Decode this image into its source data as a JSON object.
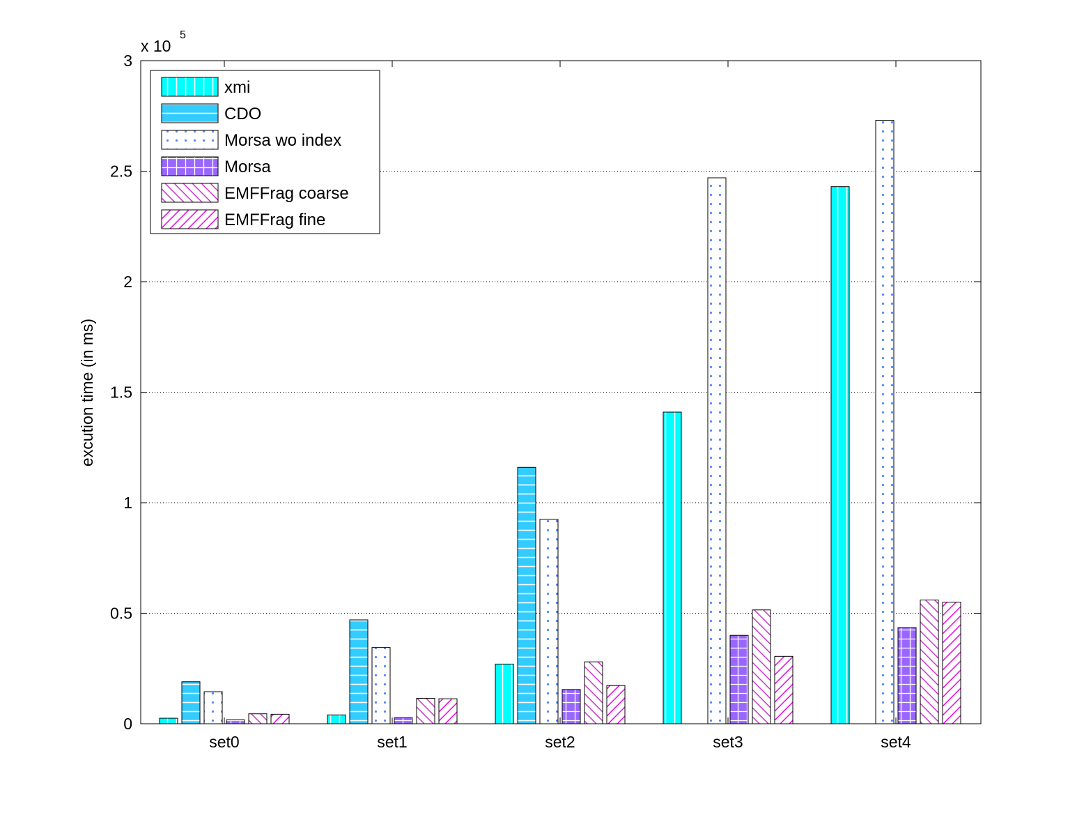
{
  "chart_data": {
    "type": "bar",
    "categories": [
      "set0",
      "set1",
      "set2",
      "set3",
      "set4"
    ],
    "ylabel": "excution time (in ms)",
    "y_multiplier_label": {
      "base": "x 10",
      "exponent": "5"
    },
    "ylim": [
      0,
      300000
    ],
    "yticks": [
      0,
      50000,
      100000,
      150000,
      200000,
      250000,
      300000
    ],
    "ytick_labels": [
      "0",
      "0.5",
      "1",
      "1.5",
      "2",
      "2.5",
      "3"
    ],
    "grid": "horizontal dotted",
    "legend_position": "top-left",
    "series": [
      {
        "name": "xmi",
        "values": [
          2500,
          4000,
          27000,
          141000,
          243000
        ],
        "fill": "#00ffff",
        "pattern": "vertical-lines"
      },
      {
        "name": "CDO",
        "values": [
          19000,
          47000,
          116000,
          0,
          0
        ],
        "fill": "#33ccff",
        "pattern": "horizontal-lines"
      },
      {
        "name": "Morsa wo index",
        "values": [
          14500,
          34500,
          92500,
          247000,
          273000
        ],
        "fill": "#ffffff",
        "pattern": "dots"
      },
      {
        "name": "Morsa",
        "values": [
          1800,
          2700,
          15500,
          40000,
          43500
        ],
        "fill": "#9966ff",
        "pattern": "grid"
      },
      {
        "name": "EMFFrag coarse",
        "values": [
          4500,
          11500,
          28000,
          51500,
          56000
        ],
        "fill": "#ffffff",
        "pattern": "back-diagonal"
      },
      {
        "name": "EMFFrag fine",
        "values": [
          4300,
          11300,
          17300,
          30500,
          55000
        ],
        "fill": "#ffffff",
        "pattern": "forward-diagonal"
      }
    ]
  }
}
